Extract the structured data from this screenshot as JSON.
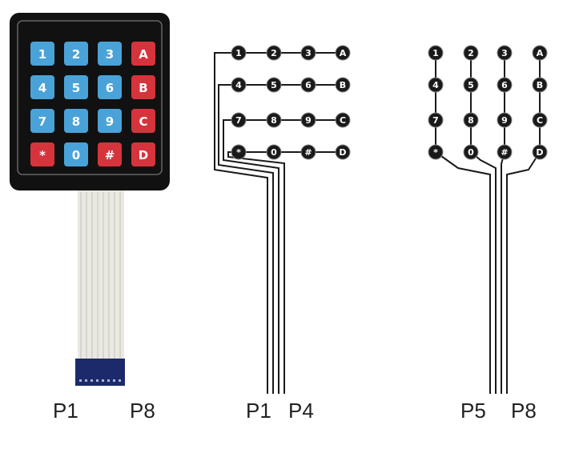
{
  "colors": {
    "keypad_frame": "#111111",
    "key_blue": "#4aa3d8",
    "key_red": "#d6343c",
    "node_fill": "#1a1a1a",
    "wire": "#1a1a1a",
    "ribbon": "#e8e8e0",
    "connector": "#1c2a6b"
  },
  "keypad": {
    "rows": [
      [
        {
          "label": "1",
          "color": "blue"
        },
        {
          "label": "2",
          "color": "blue"
        },
        {
          "label": "3",
          "color": "blue"
        },
        {
          "label": "A",
          "color": "red"
        }
      ],
      [
        {
          "label": "4",
          "color": "blue"
        },
        {
          "label": "5",
          "color": "blue"
        },
        {
          "label": "6",
          "color": "blue"
        },
        {
          "label": "B",
          "color": "red"
        }
      ],
      [
        {
          "label": "7",
          "color": "blue"
        },
        {
          "label": "8",
          "color": "blue"
        },
        {
          "label": "9",
          "color": "blue"
        },
        {
          "label": "C",
          "color": "red"
        }
      ],
      [
        {
          "label": "*",
          "color": "red"
        },
        {
          "label": "0",
          "color": "blue"
        },
        {
          "label": "#",
          "color": "red"
        },
        {
          "label": "D",
          "color": "red"
        }
      ]
    ]
  },
  "matrix_labels": [
    [
      "1",
      "2",
      "3",
      "A"
    ],
    [
      "4",
      "5",
      "6",
      "B"
    ],
    [
      "7",
      "8",
      "9",
      "C"
    ],
    [
      "*",
      "0",
      "#",
      "D"
    ]
  ],
  "pin_labels": {
    "photo_left": "P1",
    "photo_right": "P8",
    "rows_left": "P1",
    "rows_right": "P4",
    "cols_left": "P5",
    "cols_right": "P8"
  }
}
